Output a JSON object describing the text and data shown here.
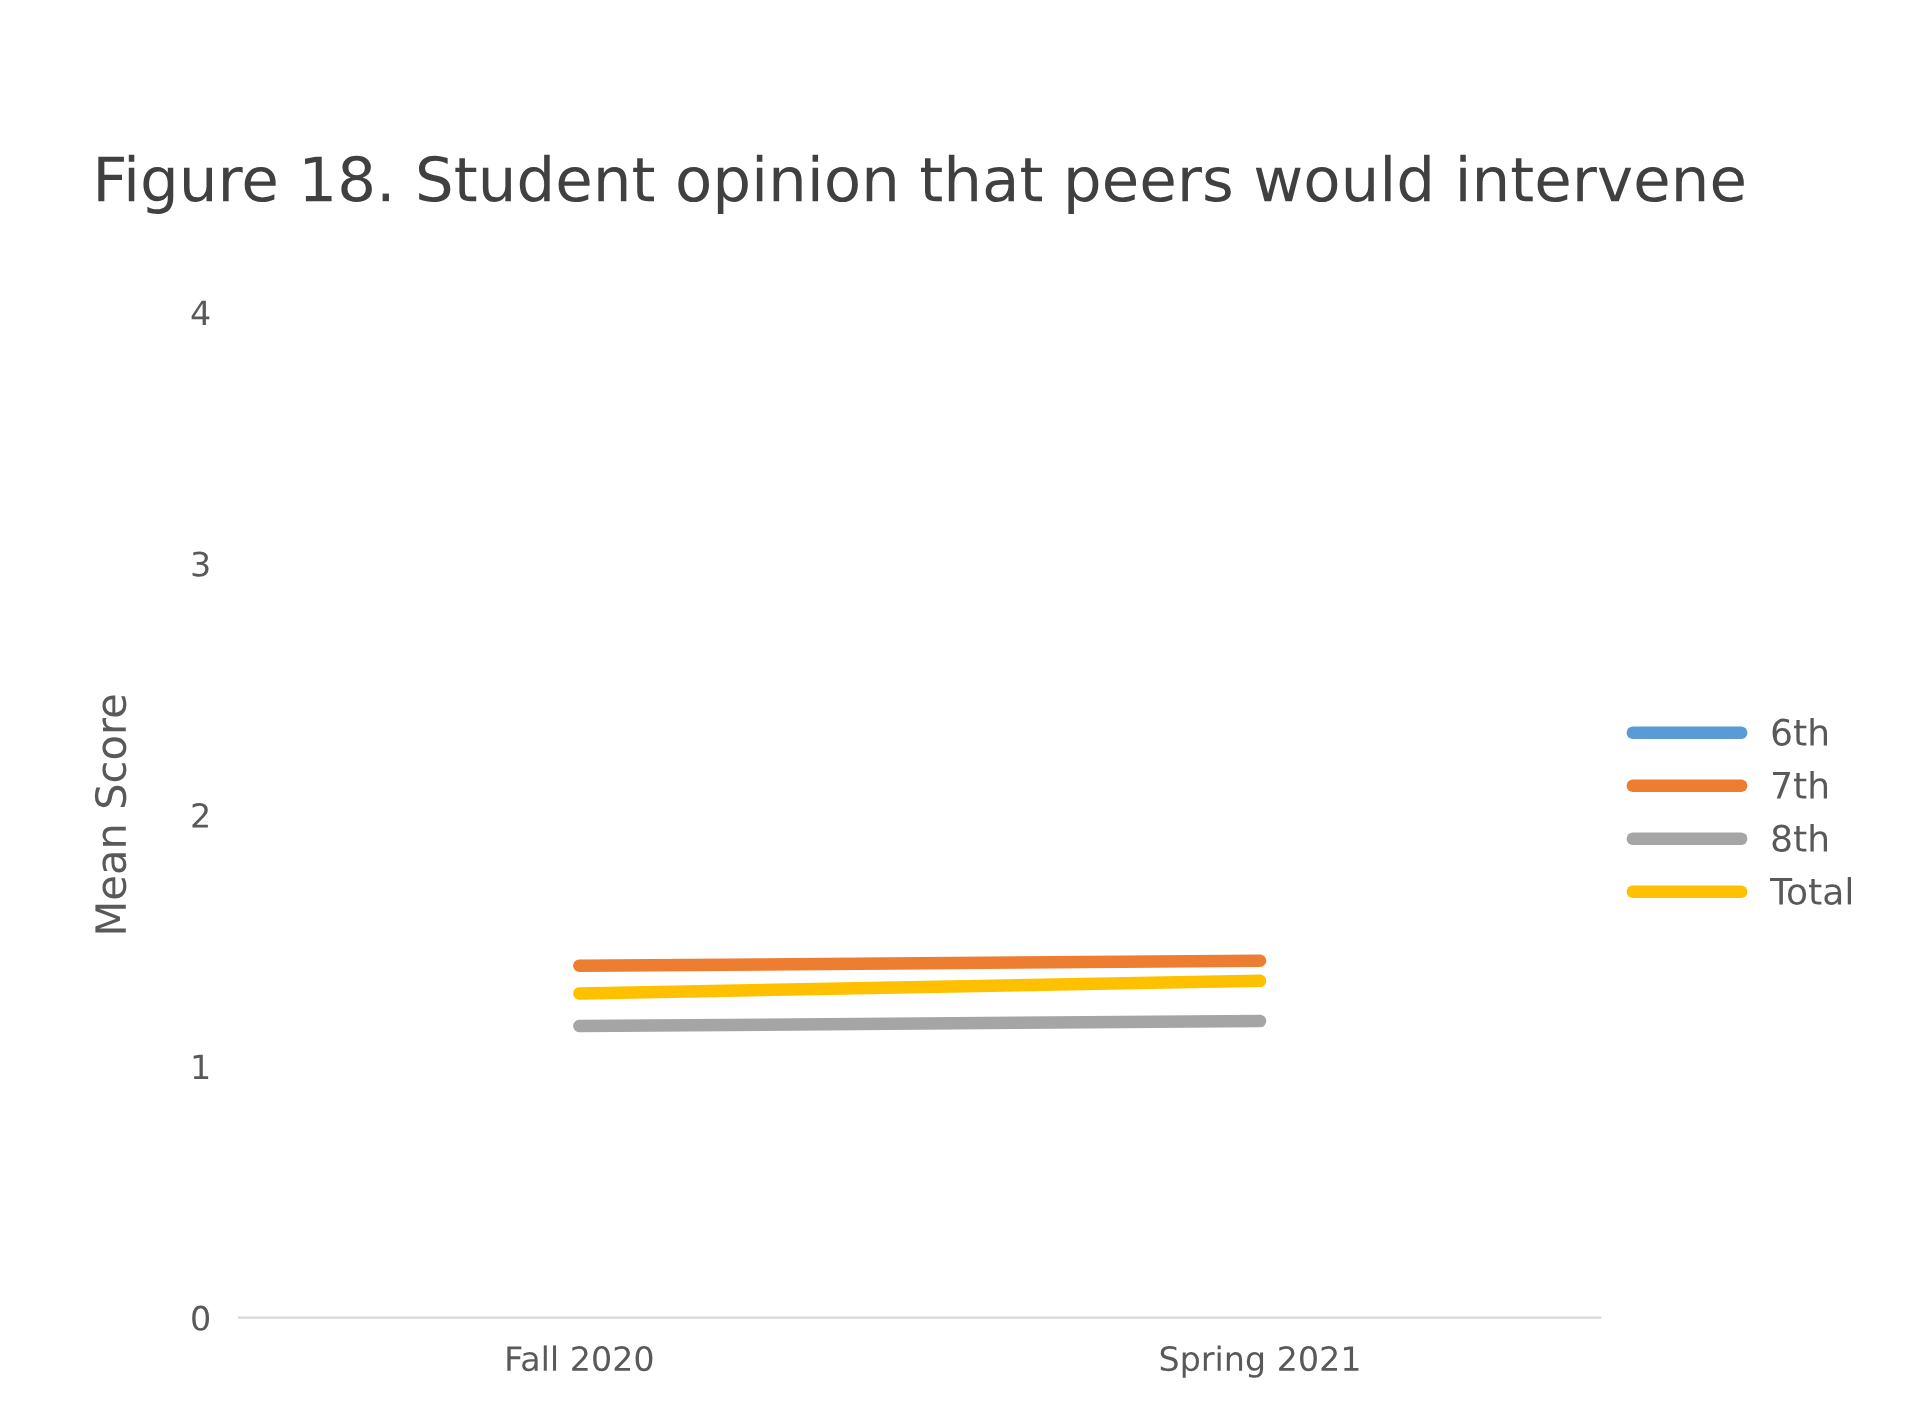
{
  "chart_data": {
    "type": "line",
    "title": "Figure 18. Student opinion that peers would intervene",
    "ylabel": "Mean Score",
    "categories": [
      "Fall 2020",
      "Spring 2021"
    ],
    "series": [
      {
        "name": "6th",
        "color": "#5b9bd5",
        "values": [
          null,
          null
        ]
      },
      {
        "name": "7th",
        "color": "#ed7d31",
        "values": [
          1.4,
          1.42
        ]
      },
      {
        "name": "8th",
        "color": "#a5a5a5",
        "values": [
          1.16,
          1.18
        ]
      },
      {
        "name": "Total",
        "color": "#ffc000",
        "values": [
          1.29,
          1.34
        ]
      }
    ],
    "ylim": [
      0,
      4
    ],
    "yticks": [
      0,
      1,
      2,
      3,
      4
    ],
    "grid": false,
    "legend": "right",
    "marker": "none",
    "line_style": "solid"
  }
}
